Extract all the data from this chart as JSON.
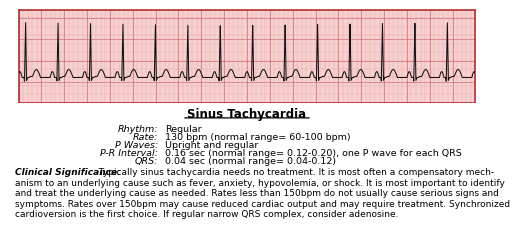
{
  "title": "Sinus Tachycardia",
  "ecg_bg_color": "#f7d0d0",
  "ecg_grid_minor_color": "#e8a0a0",
  "ecg_grid_major_color": "#d07070",
  "ecg_line_color": "#111111",
  "box_border_color": "#b03030",
  "fields": [
    {
      "label": "Rhythm:",
      "value": "Regular"
    },
    {
      "label": "Rate:",
      "value": "130 bpm (normal range= 60-100 bpm)"
    },
    {
      "label": "P Waves:",
      "value": "Upright and regular"
    },
    {
      "label": "P-R Interval:",
      "value": "0.16 sec (normal range= 0.12-0.20), one P wave for each QRS"
    },
    {
      "label": "QRS:",
      "value": "0.04 sec (normal range= 0.04-0.12)"
    }
  ],
  "clinical_label": "Clinical Significance:",
  "clinical_lines": [
    "  Typically sinus tachycardia needs no treatment. It is most often a compensatory mech-",
    "anism to an underlying cause such as fever, anxiety, hypovolemia, or shock. It is most important to identify",
    "and treat the underlying cause as needed. Rates less than 150bpm do not usually cause serious signs and",
    "symptoms. Rates over 150bpm may cause reduced cardiac output and may require treatment. Synchronized",
    "cardioversion is the first choice. If regular narrow QRS complex, consider adenosine."
  ],
  "background_color": "#ffffff",
  "font_size_fields": 6.8,
  "font_size_clinical": 6.5,
  "font_size_title": 8.5
}
